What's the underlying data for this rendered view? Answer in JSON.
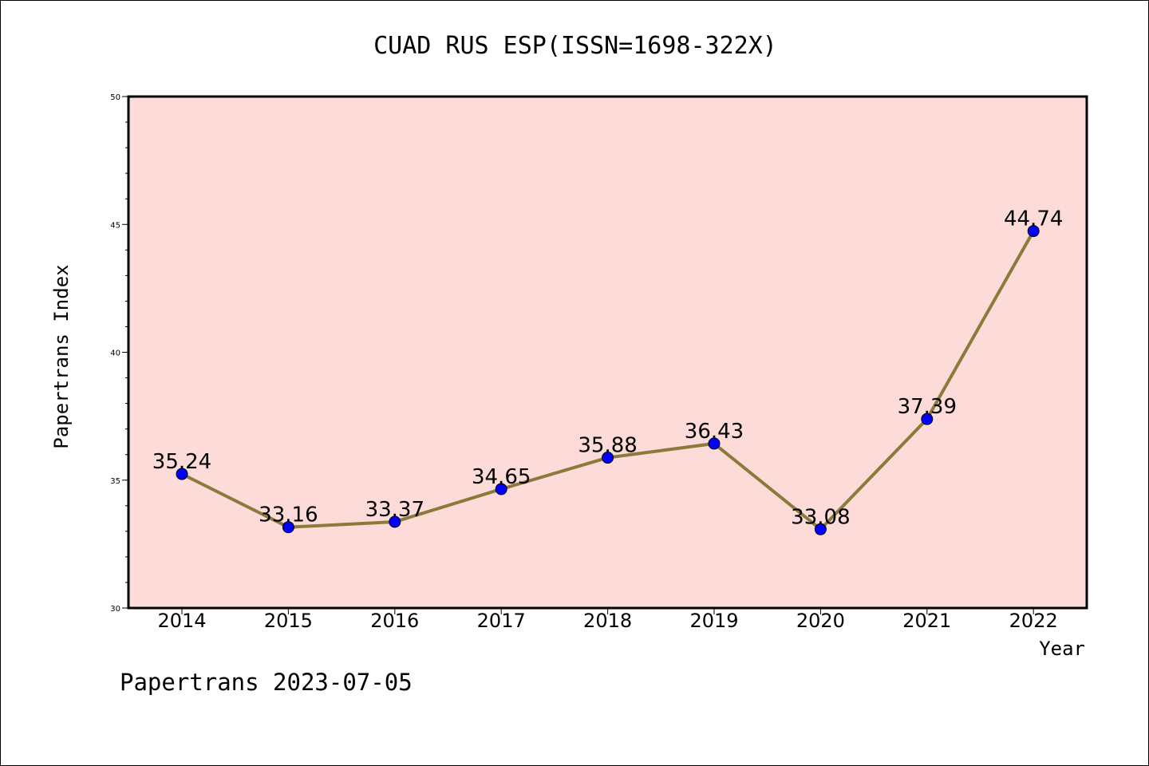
{
  "chart_data": {
    "type": "line",
    "title": "CUAD RUS ESP(ISSN=1698-322X)",
    "xlabel": "Year",
    "ylabel": "Papertrans Index",
    "categories": [
      "2014",
      "2015",
      "2016",
      "2017",
      "2018",
      "2019",
      "2020",
      "2021",
      "2022"
    ],
    "values": [
      35.24,
      33.16,
      33.37,
      34.65,
      35.88,
      36.43,
      33.08,
      37.39,
      44.74
    ],
    "data_labels": [
      "35.24",
      "33.16",
      "33.37",
      "34.65",
      "35.88",
      "36.43",
      "33.08",
      "37.39",
      "44.74"
    ],
    "ylim": [
      30,
      50
    ],
    "yticks": [
      "30",
      "35",
      "40",
      "45",
      "50"
    ],
    "grid": false,
    "legend": "none",
    "footer": "Papertrans 2023-07-05",
    "colors": {
      "plot_background": "#fddbd8",
      "line": "#8b7a3a",
      "marker": "#0000ff"
    }
  }
}
